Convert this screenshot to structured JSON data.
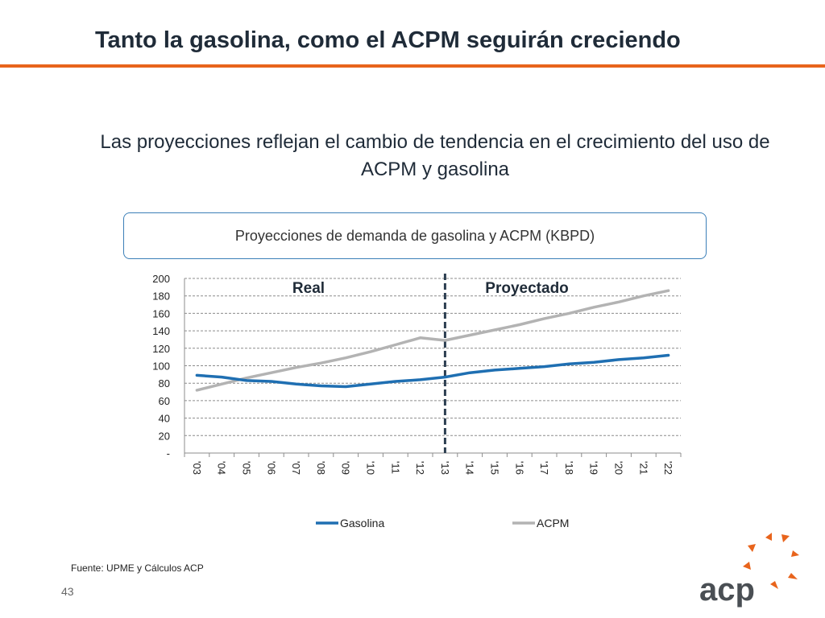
{
  "slide": {
    "title": "Tanto la gasolina, como el ACPM seguirán creciendo",
    "subtitle": "Las proyecciones reflejan el cambio de tendencia en el crecimiento del uso de ACPM y gasolina",
    "source": "Fuente: UPME y Cálculos ACP",
    "page_number": "43",
    "logo_text": "acp",
    "colors": {
      "accent": "#e8641c",
      "title": "#1f2b38",
      "box_border": "#3b7fb8"
    }
  },
  "chart_data": {
    "type": "line",
    "title": "Proyecciones de demanda de gasolina y ACPM (KBPD)",
    "categories": [
      "'03",
      "'04",
      "'05",
      "'06",
      "'07",
      "'08",
      "'09",
      "'10",
      "'11",
      "'12",
      "'13",
      "'14",
      "'15",
      "'16",
      "'17",
      "'18",
      "'19",
      "'20",
      "'21",
      "'22"
    ],
    "series": [
      {
        "name": "Gasolina",
        "color": "#1f6fb2",
        "values": [
          89,
          87,
          83,
          82,
          79,
          77,
          76,
          79,
          82,
          84,
          87,
          92,
          95,
          97,
          99,
          102,
          104,
          107,
          109,
          112
        ]
      },
      {
        "name": "ACPM",
        "color": "#b3b3b3",
        "values": [
          72,
          79,
          86,
          92,
          98,
          103,
          109,
          116,
          124,
          132,
          129,
          135,
          141,
          147,
          154,
          160,
          167,
          173,
          180,
          186
        ]
      }
    ],
    "ylim": [
      0,
      200
    ],
    "y_ticks": [
      "-",
      "20",
      "40",
      "60",
      "80",
      "100",
      "120",
      "140",
      "160",
      "180",
      "200"
    ],
    "grid": true,
    "legend_position": "bottom",
    "annotations": [
      {
        "text": "Real"
      },
      {
        "text": "Proyectado"
      }
    ],
    "divider_after_category": "'13"
  }
}
